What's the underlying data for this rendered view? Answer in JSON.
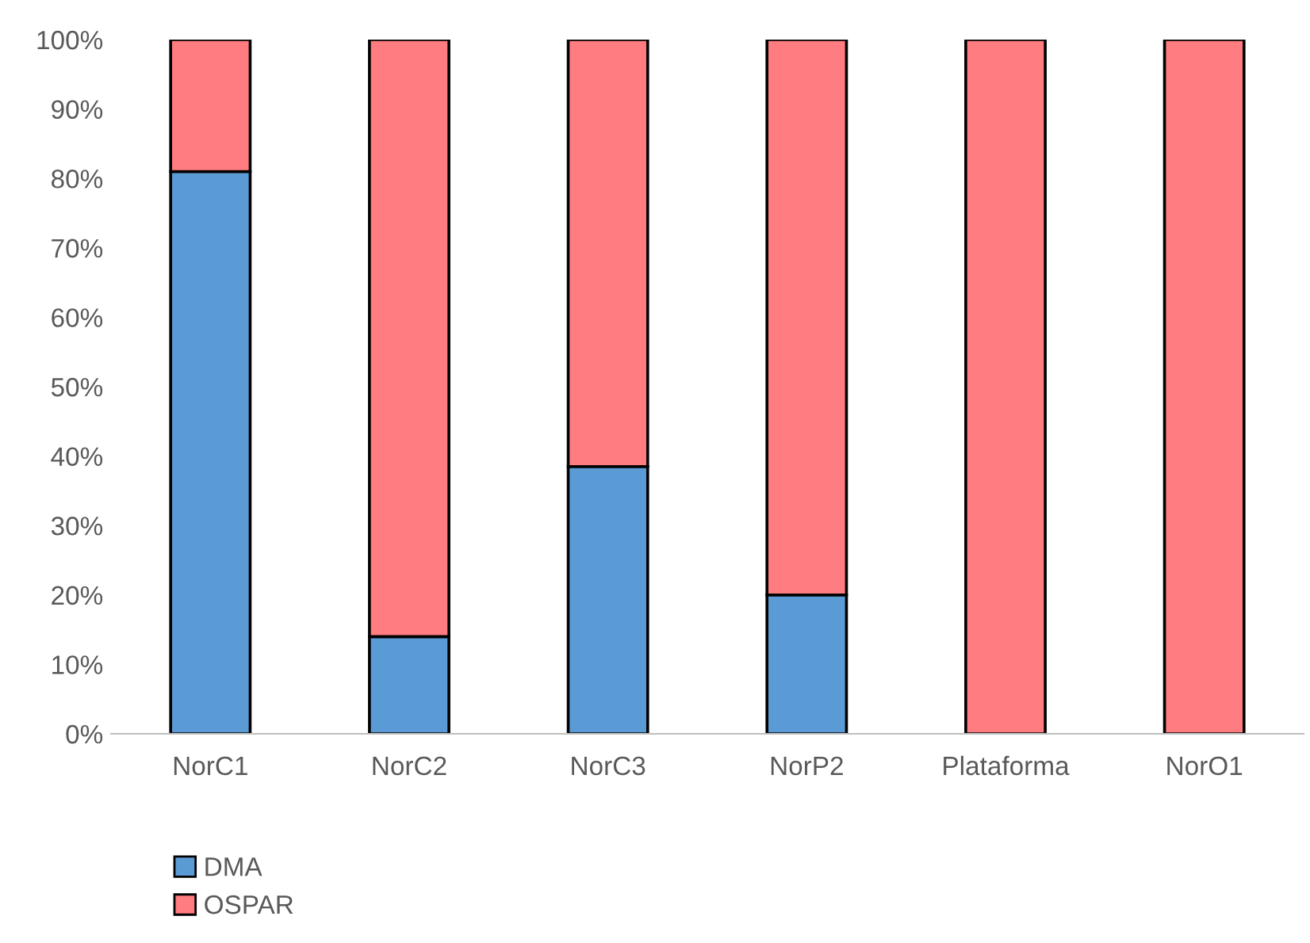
{
  "chart_data": {
    "type": "bar",
    "stacked": true,
    "categories": [
      "NorC1",
      "NorC2",
      "NorC3",
      "NorP2",
      "Plataforma",
      "NorO1"
    ],
    "series": [
      {
        "name": "DMA",
        "color": "#5b9bd5",
        "values": [
          81,
          14,
          38.5,
          20,
          0,
          0
        ]
      },
      {
        "name": "OSPAR",
        "color": "#ff7c80",
        "values": [
          19,
          86,
          61.5,
          80,
          100,
          100
        ]
      }
    ],
    "ylim": [
      0,
      100
    ],
    "yticks": [
      {
        "value": 0,
        "label": "0%"
      },
      {
        "value": 10,
        "label": "10%"
      },
      {
        "value": 20,
        "label": "20%"
      },
      {
        "value": 30,
        "label": "30%"
      },
      {
        "value": 40,
        "label": "40%"
      },
      {
        "value": 50,
        "label": "50%"
      },
      {
        "value": 60,
        "label": "60%"
      },
      {
        "value": 70,
        "label": "70%"
      },
      {
        "value": 80,
        "label": "80%"
      },
      {
        "value": 90,
        "label": "90%"
      },
      {
        "value": 100,
        "label": "100%"
      }
    ],
    "grid": false,
    "legend": "bottom left"
  }
}
